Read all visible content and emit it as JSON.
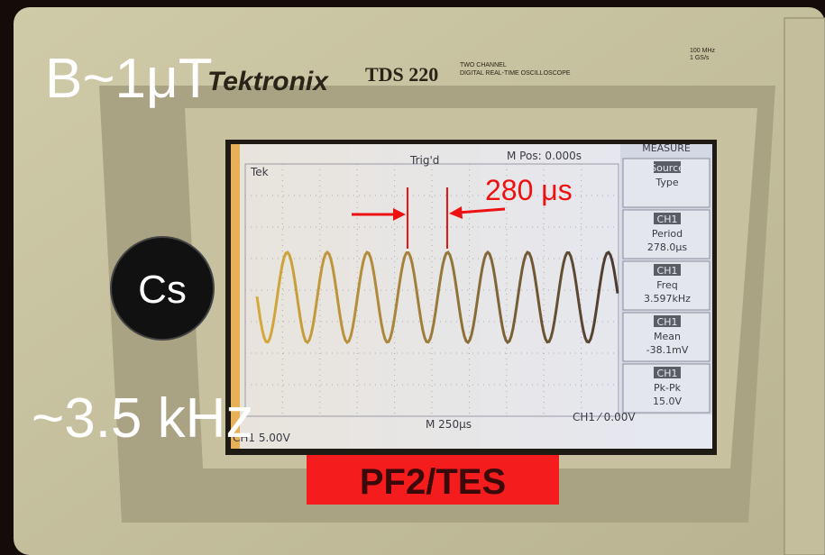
{
  "overlay": {
    "field": "B~1μT",
    "element": "Cs",
    "frequency": "~3.5 kHz",
    "interval": "280 μs"
  },
  "device": {
    "brand": "Tektronix",
    "model": "TDS 220",
    "description": [
      "TWO CHANNEL",
      "DIGITAL REAL-TIME OSCILLOSCOPE"
    ],
    "spec": [
      "100 MHz",
      "1 GS/s"
    ]
  },
  "screen": {
    "status": [
      "Tek",
      "Trig'd",
      "M Pos: 0.000s"
    ],
    "menu_title": "MEASURE",
    "menu": [
      {
        "channel": "Source",
        "label": "Type"
      },
      {
        "channel": "CH1",
        "label": "Period",
        "value": "278.0μs"
      },
      {
        "channel": "CH1",
        "label": "Freq",
        "value": "3.597kHz"
      },
      {
        "channel": "CH1",
        "label": "Mean",
        "value": "-38.1mV"
      },
      {
        "channel": "CH1",
        "label": "Pk-Pk",
        "value": "15.0V"
      }
    ],
    "footer": [
      "CH1 5.00V",
      "M 250μs",
      "CH1 ⁄ 0.00V"
    ]
  },
  "label": "PF2/TES"
}
